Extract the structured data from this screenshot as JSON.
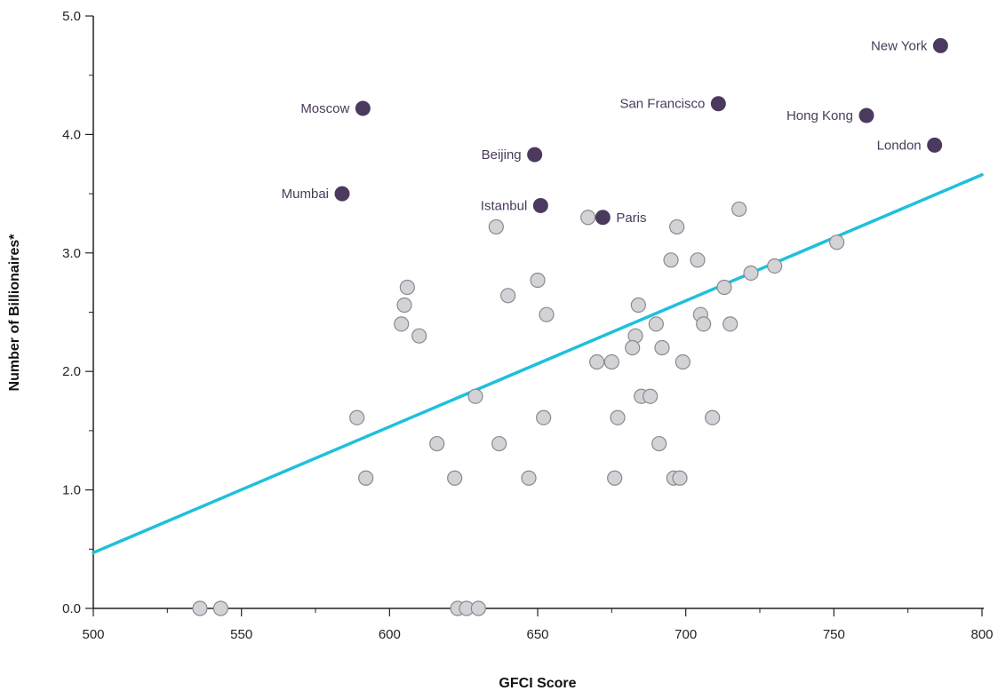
{
  "chart_data": {
    "type": "scatter",
    "title": "",
    "xlabel": "GFCI Score",
    "ylabel": "Number of Billionaires*",
    "xlim": [
      500,
      800
    ],
    "ylim": [
      0,
      5
    ],
    "x_ticks": [
      "500",
      "550",
      "600",
      "650",
      "700",
      "750",
      "800"
    ],
    "y_ticks": [
      "0.0",
      "1.0",
      "2.0",
      "3.0",
      "4.0",
      "5.0"
    ],
    "grid": false,
    "trendline": {
      "x": [
        500,
        800
      ],
      "y": [
        0.47,
        3.66
      ],
      "color": "#1ec0dc"
    },
    "colors": {
      "highlight": "#4b3a5e",
      "other": "#d4d2d6",
      "other_stroke": "#8a8a8e",
      "axis": "#222222"
    },
    "highlighted": [
      {
        "name": "New York",
        "x": 786,
        "y": 4.75
      },
      {
        "name": "Moscow",
        "x": 591,
        "y": 4.22
      },
      {
        "name": "San Francisco",
        "x": 711,
        "y": 4.26
      },
      {
        "name": "Hong Kong",
        "x": 761,
        "y": 4.16
      },
      {
        "name": "London",
        "x": 784,
        "y": 3.91
      },
      {
        "name": "Beijing",
        "x": 649,
        "y": 3.83
      },
      {
        "name": "Mumbai",
        "x": 584,
        "y": 3.5
      },
      {
        "name": "Istanbul",
        "x": 651,
        "y": 3.4
      },
      {
        "name": "Paris",
        "x": 672,
        "y": 3.3
      }
    ],
    "others": [
      {
        "x": 667,
        "y": 3.3
      },
      {
        "x": 636,
        "y": 3.22
      },
      {
        "x": 697,
        "y": 3.22
      },
      {
        "x": 718,
        "y": 3.37
      },
      {
        "x": 751,
        "y": 3.09
      },
      {
        "x": 695,
        "y": 2.94
      },
      {
        "x": 704,
        "y": 2.94
      },
      {
        "x": 730,
        "y": 2.89
      },
      {
        "x": 722,
        "y": 2.83
      },
      {
        "x": 650,
        "y": 2.77
      },
      {
        "x": 606,
        "y": 2.71
      },
      {
        "x": 713,
        "y": 2.71
      },
      {
        "x": 640,
        "y": 2.64
      },
      {
        "x": 605,
        "y": 2.56
      },
      {
        "x": 684,
        "y": 2.56
      },
      {
        "x": 653,
        "y": 2.48
      },
      {
        "x": 705,
        "y": 2.48
      },
      {
        "x": 604,
        "y": 2.4
      },
      {
        "x": 690,
        "y": 2.4
      },
      {
        "x": 706,
        "y": 2.4
      },
      {
        "x": 715,
        "y": 2.4
      },
      {
        "x": 610,
        "y": 2.3
      },
      {
        "x": 683,
        "y": 2.3
      },
      {
        "x": 682,
        "y": 2.2
      },
      {
        "x": 692,
        "y": 2.2
      },
      {
        "x": 670,
        "y": 2.08
      },
      {
        "x": 675,
        "y": 2.08
      },
      {
        "x": 699,
        "y": 2.08
      },
      {
        "x": 629,
        "y": 1.79
      },
      {
        "x": 685,
        "y": 1.79
      },
      {
        "x": 688,
        "y": 1.79
      },
      {
        "x": 589,
        "y": 1.61
      },
      {
        "x": 652,
        "y": 1.61
      },
      {
        "x": 677,
        "y": 1.61
      },
      {
        "x": 709,
        "y": 1.61
      },
      {
        "x": 616,
        "y": 1.39
      },
      {
        "x": 637,
        "y": 1.39
      },
      {
        "x": 691,
        "y": 1.39
      },
      {
        "x": 592,
        "y": 1.1
      },
      {
        "x": 622,
        "y": 1.1
      },
      {
        "x": 647,
        "y": 1.1
      },
      {
        "x": 676,
        "y": 1.1
      },
      {
        "x": 696,
        "y": 1.1
      },
      {
        "x": 698,
        "y": 1.1
      },
      {
        "x": 536,
        "y": 0
      },
      {
        "x": 543,
        "y": 0
      },
      {
        "x": 623,
        "y": 0
      },
      {
        "x": 626,
        "y": 0
      },
      {
        "x": 630,
        "y": 0
      }
    ]
  }
}
